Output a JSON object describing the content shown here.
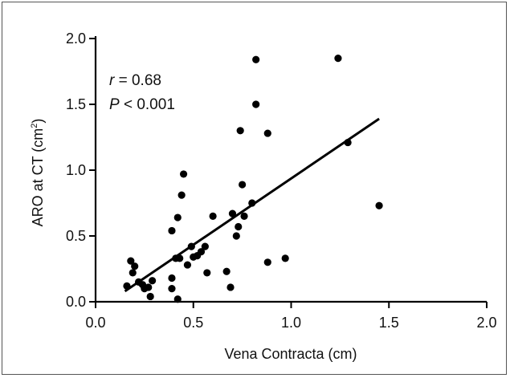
{
  "chart_data": {
    "type": "scatter",
    "xlabel": "Vena Contracta (cm)",
    "ylabel_main": "ARO at CT (cm",
    "ylabel_sup": "2",
    "ylabel_close": ")",
    "xlim": [
      0.0,
      2.0
    ],
    "ylim": [
      0.0,
      2.0
    ],
    "x_ticks": [
      "0.0",
      "0.5",
      "1.0",
      "1.5",
      "2.0"
    ],
    "y_ticks": [
      "0.0",
      "0.5",
      "1.0",
      "1.5",
      "2.0"
    ],
    "annotations": {
      "r_symbol": "r",
      "r_value": " = 0.68",
      "p_symbol": "P",
      "p_value": " < 0.001"
    },
    "regression_line": {
      "x": [
        0.15,
        1.45
      ],
      "y": [
        0.08,
        1.39
      ]
    },
    "points": [
      {
        "x": 0.16,
        "y": 0.12
      },
      {
        "x": 0.18,
        "y": 0.31
      },
      {
        "x": 0.19,
        "y": 0.22
      },
      {
        "x": 0.2,
        "y": 0.27
      },
      {
        "x": 0.22,
        "y": 0.15
      },
      {
        "x": 0.24,
        "y": 0.13
      },
      {
        "x": 0.25,
        "y": 0.1
      },
      {
        "x": 0.27,
        "y": 0.11
      },
      {
        "x": 0.28,
        "y": 0.04
      },
      {
        "x": 0.29,
        "y": 0.16
      },
      {
        "x": 0.39,
        "y": 0.18
      },
      {
        "x": 0.39,
        "y": 0.1
      },
      {
        "x": 0.39,
        "y": 0.54
      },
      {
        "x": 0.41,
        "y": 0.33
      },
      {
        "x": 0.42,
        "y": 0.02
      },
      {
        "x": 0.42,
        "y": 0.64
      },
      {
        "x": 0.43,
        "y": 0.33
      },
      {
        "x": 0.44,
        "y": 0.81
      },
      {
        "x": 0.45,
        "y": 0.97
      },
      {
        "x": 0.47,
        "y": 0.28
      },
      {
        "x": 0.49,
        "y": 0.42
      },
      {
        "x": 0.5,
        "y": 0.34
      },
      {
        "x": 0.52,
        "y": 0.35
      },
      {
        "x": 0.54,
        "y": 0.38
      },
      {
        "x": 0.56,
        "y": 0.42
      },
      {
        "x": 0.57,
        "y": 0.22
      },
      {
        "x": 0.6,
        "y": 0.65
      },
      {
        "x": 0.67,
        "y": 0.23
      },
      {
        "x": 0.69,
        "y": 0.11
      },
      {
        "x": 0.7,
        "y": 0.67
      },
      {
        "x": 0.72,
        "y": 0.5
      },
      {
        "x": 0.73,
        "y": 0.57
      },
      {
        "x": 0.74,
        "y": 1.3
      },
      {
        "x": 0.75,
        "y": 0.89
      },
      {
        "x": 0.76,
        "y": 0.65
      },
      {
        "x": 0.8,
        "y": 0.75
      },
      {
        "x": 0.82,
        "y": 1.5
      },
      {
        "x": 0.82,
        "y": 1.84
      },
      {
        "x": 0.88,
        "y": 0.3
      },
      {
        "x": 0.88,
        "y": 1.28
      },
      {
        "x": 0.97,
        "y": 0.33
      },
      {
        "x": 1.24,
        "y": 1.85
      },
      {
        "x": 1.29,
        "y": 1.21
      },
      {
        "x": 1.45,
        "y": 0.73
      }
    ],
    "grid": false,
    "colors": {
      "marker": "#000000",
      "line": "#000000",
      "axis": "#000000"
    }
  }
}
